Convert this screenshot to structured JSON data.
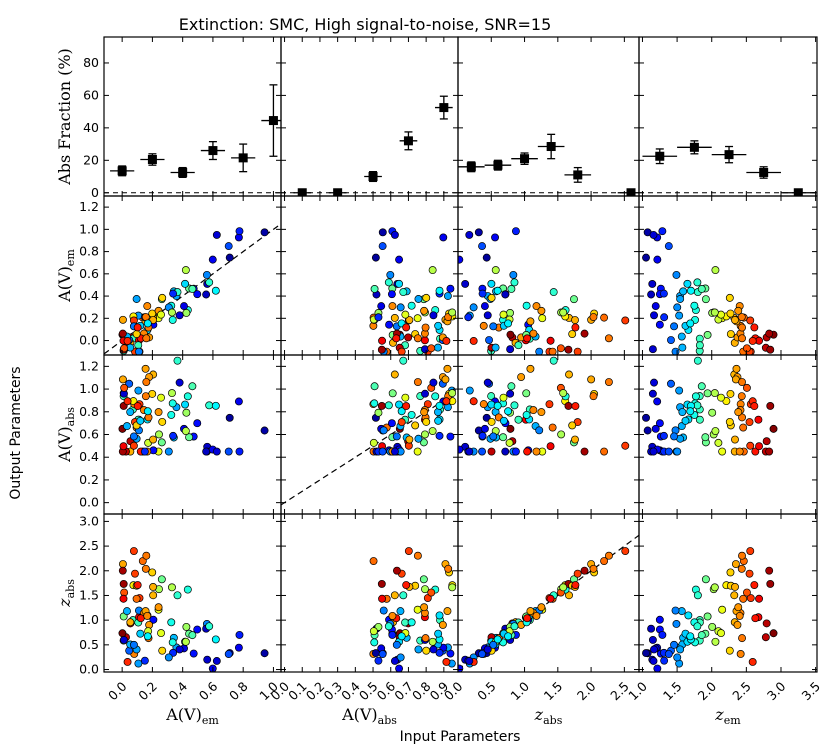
{
  "chart_data": {
    "type": "scatter",
    "title": "Extinction: SMC, High signal-to-noise, SNR=15",
    "xlabel": "Input Parameters",
    "ylabel": "Output Parameters",
    "colormap": [
      "#00007f",
      "#0000ff",
      "#007fff",
      "#00ffff",
      "#7fff7f",
      "#ffff00",
      "#ff7f00",
      "#ff0000",
      "#7f0000"
    ],
    "columns": [
      {
        "label_base": "A(V)",
        "label_sub": "em",
        "italic": false,
        "xlim": [
          -0.12,
          1.05
        ],
        "ticks": [
          "0.0",
          "0.2",
          "0.4",
          "0.6",
          "0.8",
          "1.0"
        ],
        "tick_values": [
          0,
          0.2,
          0.4,
          0.6,
          0.8,
          1.0
        ]
      },
      {
        "label_base": "A(V)",
        "label_sub": "abs",
        "italic": false,
        "xlim": [
          -0.02,
          0.98
        ],
        "ticks": [
          "0.0",
          "0.1",
          "0.2",
          "0.3",
          "0.4",
          "0.5",
          "0.6",
          "0.7",
          "0.8",
          "0.9"
        ],
        "tick_values": [
          0,
          0.1,
          0.2,
          0.3,
          0.4,
          0.5,
          0.6,
          0.7,
          0.8,
          0.9
        ]
      },
      {
        "label_base": "z",
        "label_sub": "abs",
        "italic": true,
        "xlim": [
          0.0,
          2.72
        ],
        "ticks": [
          "0.0",
          "0.5",
          "1.0",
          "1.5",
          "2.0",
          "2.5"
        ],
        "tick_values": [
          0,
          0.5,
          1.0,
          1.5,
          2.0,
          2.5
        ]
      },
      {
        "label_base": "z",
        "label_sub": "em",
        "italic": true,
        "xlim": [
          0.95,
          3.52
        ],
        "ticks": [
          "1.0",
          "1.5",
          "2.0",
          "2.5",
          "3.0",
          "3.5"
        ],
        "tick_values": [
          1.0,
          1.5,
          2.0,
          2.5,
          3.0,
          3.5
        ]
      }
    ],
    "rows": [
      {
        "label_base": "Abs Fraction (%)",
        "label_sub": "",
        "italic": false,
        "ylim": [
          -2,
          96
        ],
        "ticks": [
          "0",
          "20",
          "40",
          "60",
          "80"
        ],
        "tick_values": [
          0,
          20,
          40,
          60,
          80
        ]
      },
      {
        "label_base": "A(V)",
        "label_sub": "em",
        "italic": false,
        "ylim": [
          -0.13,
          1.3
        ],
        "ticks": [
          "0.0",
          "0.2",
          "0.4",
          "0.6",
          "0.8",
          "1.0",
          "1.2"
        ],
        "tick_values": [
          0,
          0.2,
          0.4,
          0.6,
          0.8,
          1.0,
          1.2
        ]
      },
      {
        "label_base": "A(V)",
        "label_sub": "abs",
        "italic": false,
        "ylim": [
          -0.1,
          1.3
        ],
        "ticks": [
          "0.0",
          "0.2",
          "0.4",
          "0.6",
          "0.8",
          "1.0",
          "1.2"
        ],
        "tick_values": [
          0,
          0.2,
          0.4,
          0.6,
          0.8,
          1.0,
          1.2
        ]
      },
      {
        "label_base": "z",
        "label_sub": "abs",
        "italic": true,
        "ylim": [
          -0.05,
          3.15
        ],
        "ticks": [
          "0.0",
          "0.5",
          "1.0",
          "1.5",
          "2.0",
          "2.5",
          "3.0"
        ],
        "tick_values": [
          0,
          0.5,
          1.0,
          1.5,
          2.0,
          2.5,
          3.0
        ]
      }
    ],
    "abs_fraction": [
      {
        "x": [
          0.0,
          0.2,
          0.4,
          0.6,
          0.8,
          1.0
        ],
        "y": [
          13.5,
          20.5,
          12.5,
          26,
          21.5,
          44.5
        ],
        "xerr": [
          0.08,
          0.08,
          0.08,
          0.08,
          0.08,
          0.08
        ],
        "yerr": [
          3,
          3.5,
          3,
          5.5,
          8.5,
          22
        ]
      },
      {
        "x": [
          0.1,
          0.3,
          0.5,
          0.7,
          0.9
        ],
        "y": [
          0,
          0,
          10,
          32,
          52.5
        ],
        "xerr": [
          0.05,
          0.05,
          0.05,
          0.05,
          0.05
        ],
        "yerr": [
          0,
          0,
          3,
          5.5,
          7
        ]
      },
      {
        "x": [
          0.2,
          0.6,
          1.0,
          1.4,
          1.8,
          2.6
        ],
        "y": [
          16,
          17,
          21,
          28.5,
          11,
          0
        ],
        "xerr": [
          0.2,
          0.2,
          0.2,
          0.2,
          0.2,
          0.2
        ],
        "yerr": [
          3,
          3,
          3.5,
          7.5,
          4.5,
          0
        ]
      },
      {
        "x": [
          1.25,
          1.75,
          2.25,
          2.75,
          3.25
        ],
        "y": [
          22.5,
          28,
          23.5,
          12.5,
          0
        ],
        "xerr": [
          0.25,
          0.25,
          0.25,
          0.25,
          0.25
        ],
        "yerr": [
          4.5,
          4,
          5,
          3.5,
          0
        ]
      }
    ]
  }
}
